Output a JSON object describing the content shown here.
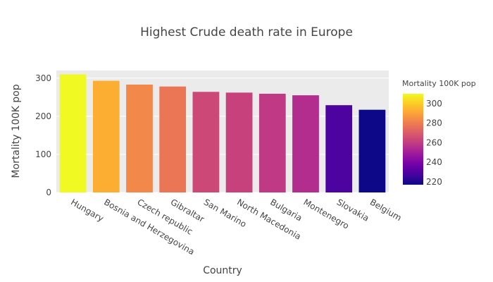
{
  "chart_data": {
    "type": "bar",
    "title": "Highest Crude death rate in Europe",
    "xlabel": "Country",
    "ylabel": "Mortality 100K pop",
    "categories": [
      "Hungary",
      "Bosnia and Herzegovina",
      "Czech republic",
      "Gibraltar",
      "San Marino",
      "North Macedonia",
      "Bulgaria",
      "Montenegro",
      "Slovakia",
      "Belgium"
    ],
    "values": [
      310,
      293,
      283,
      278,
      264,
      262,
      259,
      255,
      229,
      217
    ],
    "ylim": [
      0,
      320
    ],
    "yticks": [
      0,
      100,
      200,
      300
    ],
    "grid": true,
    "colorbar": {
      "title": "Mortality 100K pop",
      "range": [
        217,
        310
      ],
      "ticks": [
        220,
        240,
        260,
        280,
        300
      ],
      "colorscale": [
        "#0d0887",
        "#46039f",
        "#7201a8",
        "#9c179e",
        "#bd3786",
        "#d8576b",
        "#ed7953",
        "#fb9f3a",
        "#fdca26",
        "#f0f921"
      ]
    }
  }
}
